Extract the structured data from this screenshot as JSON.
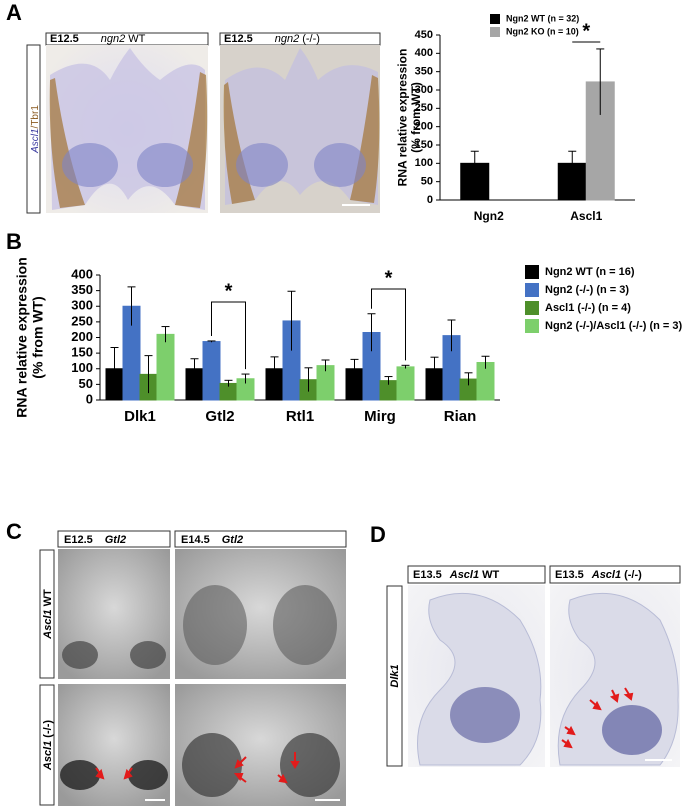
{
  "panel_labels": [
    "A",
    "B",
    "C",
    "D"
  ],
  "panel_a": {
    "images": [
      {
        "stage": "E12.5",
        "gene": "ngn2",
        "genotype": "WT"
      },
      {
        "stage": "E12.5",
        "gene": "ngn2",
        "genotype": "(-/-)"
      }
    ],
    "stain": [
      "Ascl1",
      "/Tbr1"
    ]
  },
  "panel_c": {
    "headers": [
      {
        "stage": "E12.5",
        "gene": "Gtl2"
      },
      {
        "stage": "E14.5",
        "gene": "Gtl2"
      }
    ],
    "rows": [
      {
        "gene": "Ascl1",
        "genotype": "WT"
      },
      {
        "gene": "Ascl1",
        "genotype": "(-/-)"
      }
    ]
  },
  "panel_d": {
    "headers": [
      {
        "stage": "E13.5",
        "gene": "Ascl1",
        "genotype": "WT"
      },
      {
        "stage": "E13.5",
        "gene": "Ascl1",
        "genotype": "(-/-)"
      }
    ],
    "stain": "Dlk1"
  },
  "chart_data": [
    {
      "type": "bar",
      "y_label": [
        "RNA relative expression",
        "(% from WT)"
      ],
      "categories": [
        "Ngn2",
        "Ascl1"
      ],
      "series": [
        {
          "name": "Ngn2 WT (n = 32)",
          "color": "#000000",
          "values": [
            100,
            100
          ],
          "errors": [
            33,
            33
          ]
        },
        {
          "name": "Ngn2 KO (n = 10)",
          "color": "#a6a6a6",
          "values": [
            null,
            322
          ],
          "errors": [
            null,
            90
          ]
        }
      ],
      "ylim": [
        0,
        450
      ],
      "yticks": [
        0,
        50,
        100,
        150,
        200,
        250,
        300,
        350,
        400,
        450
      ],
      "legend": "upper left",
      "annotations": [
        "*"
      ]
    },
    {
      "type": "bar",
      "y_label": [
        "RNA relative expression",
        "(% from WT)"
      ],
      "categories": [
        "Dlk1",
        "Gtl2",
        "Rtl1",
        "Mirg",
        "Rian"
      ],
      "series": [
        {
          "name": "Ngn2 WT (n = 16)",
          "color": "#000000",
          "values": [
            100,
            100,
            100,
            100,
            100
          ],
          "errors": [
            68,
            32,
            38,
            30,
            37
          ]
        },
        {
          "name": "Ngn2 (-/-) (n = 3)",
          "color": "#4472c4",
          "values": [
            300,
            187,
            253,
            216,
            206
          ],
          "errors": [
            62,
            2,
            95,
            60,
            50
          ]
        },
        {
          "name": "Ascl1 (-/-) (n = 4)",
          "color": "#4e8f2a",
          "values": [
            82,
            53,
            65,
            62,
            67
          ],
          "errors": [
            60,
            10,
            38,
            13,
            20
          ]
        },
        {
          "name": "Ngn2 (-/-)/Ascl1 (-/-) (n = 3)",
          "color": "#7dcf6c",
          "values": [
            210,
            68,
            110,
            106,
            120
          ],
          "errors": [
            25,
            15,
            18,
            5,
            20
          ]
        }
      ],
      "ylim": [
        0,
        400
      ],
      "yticks": [
        0,
        50,
        100,
        150,
        200,
        250,
        300,
        350,
        400
      ],
      "legend": "right",
      "annotations": [
        "*",
        "*"
      ]
    }
  ]
}
